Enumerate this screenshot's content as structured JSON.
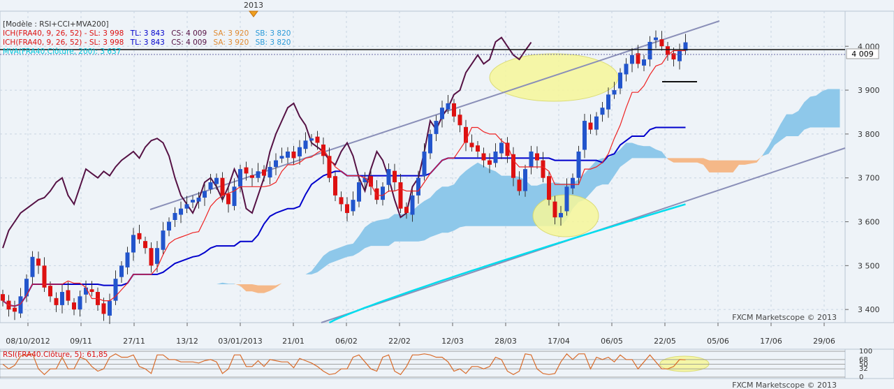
{
  "top_marker": {
    "label": "2013"
  },
  "legend": {
    "model": "[Modèle : RSI+CCI+MVA200]",
    "ich1_main": "ICH(FRA40, 9, 26, 52) -  SL: 3 998",
    "ich1_tl": "TL: 3 843",
    "ich1_cs": "CS: 4 009",
    "ich1_sa": "SA: 3 920",
    "ich1_sb": "SB: 3 820",
    "ich2_main": "ICH(FRA40, 9, 26, 52) -  SL: 3 998",
    "ich2_tl": "TL: 3 843",
    "ich2_cs": "CS: 4 009",
    "ich2_sa": "SA: 3 920",
    "ich2_sb": "SB: 3 820",
    "mva": "MVA(FRA40.Clôture, 200): 3 637"
  },
  "price_label": "4 009",
  "watermark": "FXCM Marketscope © 2013",
  "rsi_label": "RSI(FRA40.Clôture, 5): 61,85",
  "colors": {
    "background": "#eef3f8",
    "bull": "#2255cc",
    "bear": "#dd1111",
    "tenkan": "#ee2222",
    "kijun": "#0000cc",
    "chikou": "#551144",
    "kumo_bull": "#8ec8ea",
    "kumo_bear": "#f5b888",
    "mva200": "#00ddee",
    "channel": "#8a8fb8",
    "highlight": "#f7f79a",
    "rsi": "#d86b2a"
  },
  "chart_data": {
    "type": "candlestick",
    "title": "",
    "y_ticks": [
      3400,
      3500,
      3600,
      3700,
      3800,
      3900,
      4000
    ],
    "y_tick_labels": [
      "3 400",
      "3 500",
      "3 600",
      "3 700",
      "3 800",
      "3 900",
      "4 000"
    ],
    "ylim": [
      3370,
      4080
    ],
    "x_tick_labels": [
      "08/10/2012",
      "09/11",
      "27/11",
      "13/12",
      "03/01/2013",
      "21/01",
      "06/02",
      "22/02",
      "12/03",
      "28/03",
      "17/04",
      "06/05",
      "22/05",
      "05/06",
      "17/06",
      "29/06"
    ],
    "horizontal_levels": {
      "resistance": 4020,
      "last_close": 4009
    },
    "closes": [
      3420,
      3400,
      3395,
      3430,
      3470,
      3520,
      3500,
      3450,
      3430,
      3410,
      3440,
      3420,
      3400,
      3430,
      3450,
      3440,
      3410,
      3390,
      3420,
      3470,
      3500,
      3530,
      3570,
      3560,
      3540,
      3500,
      3540,
      3580,
      3600,
      3620,
      3630,
      3640,
      3650,
      3655,
      3670,
      3690,
      3700,
      3660,
      3640,
      3680,
      3720,
      3710,
      3700,
      3715,
      3705,
      3725,
      3740,
      3750,
      3760,
      3745,
      3770,
      3785,
      3790,
      3780,
      3750,
      3700,
      3660,
      3640,
      3620,
      3650,
      3690,
      3700,
      3680,
      3650,
      3680,
      3720,
      3690,
      3630,
      3620,
      3660,
      3700,
      3760,
      3800,
      3830,
      3860,
      3870,
      3840,
      3820,
      3780,
      3770,
      3760,
      3740,
      3730,
      3760,
      3780,
      3750,
      3700,
      3670,
      3720,
      3760,
      3740,
      3700,
      3650,
      3610,
      3620,
      3680,
      3700,
      3760,
      3830,
      3810,
      3840,
      3860,
      3890,
      3900,
      3940,
      3960,
      3980,
      3960,
      3970,
      4010,
      4020,
      4000,
      3980,
      3970,
      3990,
      4009
    ],
    "kijun_x_end": 112,
    "kumo_x_end": 137,
    "rsi": {
      "ylim": [
        0,
        100
      ],
      "ticks": [
        100,
        68,
        50,
        32,
        0
      ],
      "last": 61.85
    }
  }
}
